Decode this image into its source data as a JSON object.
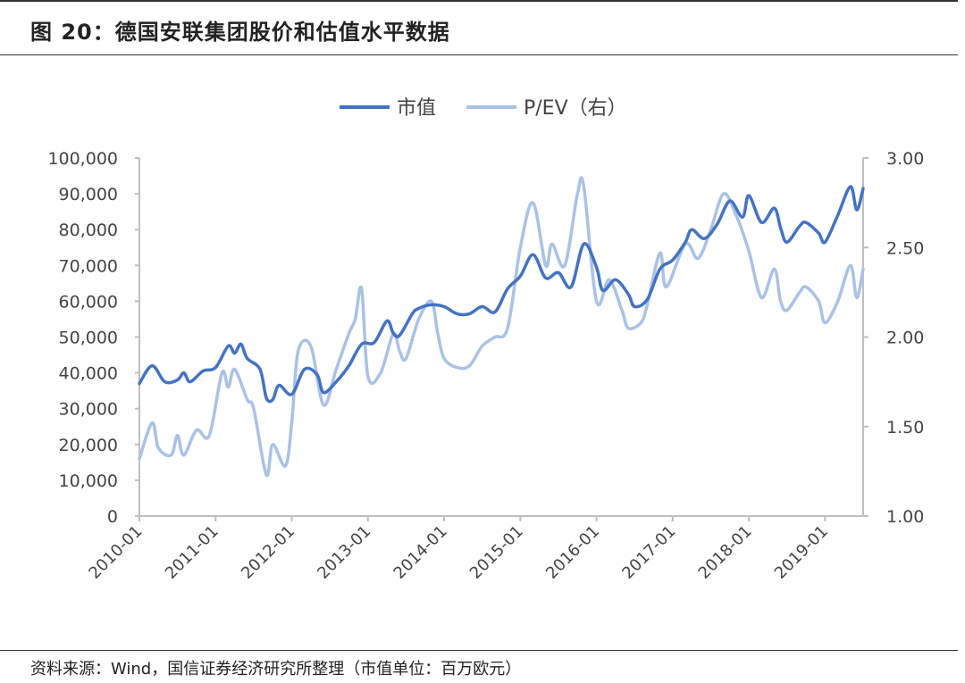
{
  "title": "图 20：德国安联集团股价和估值水平数据",
  "source": "资料来源：Wind，国信证券经济研究所整理（市值单位：百万欧元）",
  "colors": {
    "market_cap": "#4472C4",
    "pev": "#A9C2E6",
    "axis": "#BFBFBF"
  },
  "chart_data": {
    "type": "line",
    "legend_position": "top-center",
    "grid": false,
    "left_axis": {
      "ylim": [
        0,
        100000
      ],
      "ticks": [
        "0",
        "10,000",
        "20,000",
        "30,000",
        "40,000",
        "50,000",
        "60,000",
        "70,000",
        "80,000",
        "90,000",
        "100,000"
      ]
    },
    "right_axis": {
      "ylim": [
        1.0,
        3.0
      ],
      "ticks": [
        "1.00",
        "1.50",
        "2.00",
        "2.50",
        "3.00"
      ]
    },
    "x_range": [
      "2010-01",
      "2019-07"
    ],
    "x_ticks": [
      "2010-01",
      "2011-01",
      "2012-01",
      "2013-01",
      "2014-01",
      "2015-01",
      "2016-01",
      "2017-01",
      "2018-01",
      "2019-01"
    ],
    "series": [
      {
        "name": "市值",
        "axis": "left",
        "points": [
          [
            "2010-01",
            37000
          ],
          [
            "2010-03",
            42000
          ],
          [
            "2010-05",
            37500
          ],
          [
            "2010-07",
            38000
          ],
          [
            "2010-08",
            40000
          ],
          [
            "2010-09",
            37500
          ],
          [
            "2010-11",
            40500
          ],
          [
            "2011-01",
            41500
          ],
          [
            "2011-03",
            47500
          ],
          [
            "2011-04",
            45500
          ],
          [
            "2011-05",
            48000
          ],
          [
            "2011-06",
            44000
          ],
          [
            "2011-08",
            41000
          ],
          [
            "2011-09",
            33000
          ],
          [
            "2011-10",
            32500
          ],
          [
            "2011-11",
            36500
          ],
          [
            "2012-01",
            34000
          ],
          [
            "2012-03",
            41000
          ],
          [
            "2012-05",
            39500
          ],
          [
            "2012-06",
            34500
          ],
          [
            "2012-08",
            37500
          ],
          [
            "2012-10",
            42000
          ],
          [
            "2012-12",
            48000
          ],
          [
            "2013-02",
            48500
          ],
          [
            "2013-04",
            54500
          ],
          [
            "2013-05",
            51000
          ],
          [
            "2013-06",
            50500
          ],
          [
            "2013-08",
            56500
          ],
          [
            "2013-09",
            58000
          ],
          [
            "2013-11",
            59000
          ],
          [
            "2014-01",
            58500
          ],
          [
            "2014-03",
            56500
          ],
          [
            "2014-05",
            56500
          ],
          [
            "2014-07",
            58500
          ],
          [
            "2014-09",
            57000
          ],
          [
            "2014-11",
            63500
          ],
          [
            "2015-01",
            67000
          ],
          [
            "2015-03",
            73000
          ],
          [
            "2015-05",
            66500
          ],
          [
            "2015-07",
            68000
          ],
          [
            "2015-09",
            64000
          ],
          [
            "2015-11",
            76000
          ],
          [
            "2016-01",
            69500
          ],
          [
            "2016-02",
            63000
          ],
          [
            "2016-04",
            66000
          ],
          [
            "2016-06",
            62000
          ],
          [
            "2016-07",
            58500
          ],
          [
            "2016-09",
            60500
          ],
          [
            "2016-11",
            69000
          ],
          [
            "2017-01",
            71500
          ],
          [
            "2017-03",
            76500
          ],
          [
            "2017-04",
            80000
          ],
          [
            "2017-06",
            77500
          ],
          [
            "2017-08",
            81500
          ],
          [
            "2017-10",
            88000
          ],
          [
            "2017-12",
            83500
          ],
          [
            "2018-01",
            89500
          ],
          [
            "2018-03",
            82000
          ],
          [
            "2018-05",
            86000
          ],
          [
            "2018-06",
            80500
          ],
          [
            "2018-07",
            76500
          ],
          [
            "2018-09",
            81000
          ],
          [
            "2018-10",
            82000
          ],
          [
            "2018-12",
            79000
          ],
          [
            "2019-01",
            76500
          ],
          [
            "2019-03",
            84000
          ],
          [
            "2019-05",
            92000
          ],
          [
            "2019-06",
            85500
          ],
          [
            "2019-07",
            91500
          ]
        ]
      },
      {
        "name": "P/EV（右）",
        "axis": "right",
        "points": [
          [
            "2010-01",
            1.32
          ],
          [
            "2010-03",
            1.52
          ],
          [
            "2010-04",
            1.38
          ],
          [
            "2010-06",
            1.34
          ],
          [
            "2010-07",
            1.45
          ],
          [
            "2010-08",
            1.34
          ],
          [
            "2010-10",
            1.48
          ],
          [
            "2010-12",
            1.45
          ],
          [
            "2011-02",
            1.8
          ],
          [
            "2011-03",
            1.72
          ],
          [
            "2011-04",
            1.82
          ],
          [
            "2011-06",
            1.65
          ],
          [
            "2011-07",
            1.6
          ],
          [
            "2011-09",
            1.23
          ],
          [
            "2011-10",
            1.4
          ],
          [
            "2011-12",
            1.28
          ],
          [
            "2012-01",
            1.52
          ],
          [
            "2012-02",
            1.92
          ],
          [
            "2012-04",
            1.95
          ],
          [
            "2012-06",
            1.62
          ],
          [
            "2012-08",
            1.82
          ],
          [
            "2012-10",
            2.02
          ],
          [
            "2012-11",
            2.1
          ],
          [
            "2012-12",
            2.27
          ],
          [
            "2013-01",
            1.78
          ],
          [
            "2013-03",
            1.8
          ],
          [
            "2013-05",
            2.02
          ],
          [
            "2013-06",
            1.92
          ],
          [
            "2013-07",
            1.88
          ],
          [
            "2013-09",
            2.1
          ],
          [
            "2013-11",
            2.2
          ],
          [
            "2013-12",
            2.02
          ],
          [
            "2014-01",
            1.88
          ],
          [
            "2014-03",
            1.83
          ],
          [
            "2014-05",
            1.84
          ],
          [
            "2014-07",
            1.95
          ],
          [
            "2014-09",
            2.0
          ],
          [
            "2014-11",
            2.05
          ],
          [
            "2015-01",
            2.5
          ],
          [
            "2015-03",
            2.75
          ],
          [
            "2015-05",
            2.4
          ],
          [
            "2015-06",
            2.52
          ],
          [
            "2015-08",
            2.4
          ],
          [
            "2015-10",
            2.8
          ],
          [
            "2015-11",
            2.84
          ],
          [
            "2016-01",
            2.2
          ],
          [
            "2016-03",
            2.32
          ],
          [
            "2016-05",
            2.15
          ],
          [
            "2016-06",
            2.05
          ],
          [
            "2016-08",
            2.08
          ],
          [
            "2016-09",
            2.18
          ],
          [
            "2016-11",
            2.47
          ],
          [
            "2016-12",
            2.28
          ],
          [
            "2017-03",
            2.52
          ],
          [
            "2017-05",
            2.44
          ],
          [
            "2017-07",
            2.6
          ],
          [
            "2017-09",
            2.8
          ],
          [
            "2017-11",
            2.68
          ],
          [
            "2018-01",
            2.48
          ],
          [
            "2018-03",
            2.22
          ],
          [
            "2018-05",
            2.38
          ],
          [
            "2018-06",
            2.2
          ],
          [
            "2018-07",
            2.15
          ],
          [
            "2018-09",
            2.25
          ],
          [
            "2018-10",
            2.28
          ],
          [
            "2018-12",
            2.2
          ],
          [
            "2019-01",
            2.08
          ],
          [
            "2019-03",
            2.2
          ],
          [
            "2019-05",
            2.4
          ],
          [
            "2019-06",
            2.22
          ],
          [
            "2019-07",
            2.38
          ]
        ]
      }
    ]
  }
}
